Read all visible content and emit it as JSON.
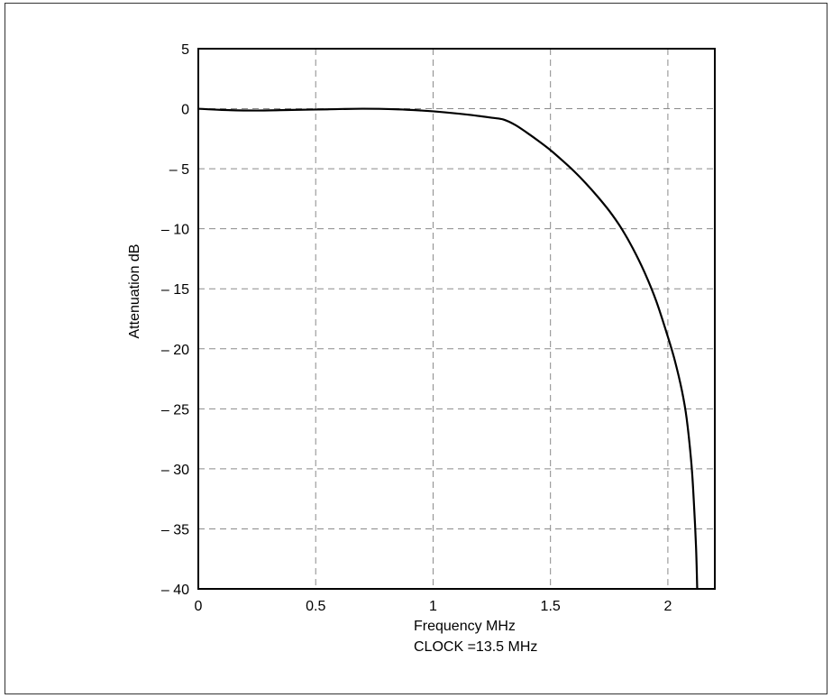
{
  "chart_data": {
    "type": "line",
    "title": "",
    "xlabel": "Frequency MHz",
    "xlabel_note": "CLOCK =13.5 MHz",
    "ylabel": "Attenuation dB",
    "xlim": [
      0,
      2.2
    ],
    "ylim": [
      -40,
      5
    ],
    "grid": true,
    "x_ticks": [
      {
        "value": 0,
        "label": "0"
      },
      {
        "value": 0.5,
        "label": "0.5"
      },
      {
        "value": 1,
        "label": "1"
      },
      {
        "value": 1.5,
        "label": "1.5"
      },
      {
        "value": 2,
        "label": "2"
      }
    ],
    "y_ticks": [
      {
        "value": 5,
        "label": "5"
      },
      {
        "value": 0,
        "label": "0"
      },
      {
        "value": -5,
        "label": "– 5"
      },
      {
        "value": -10,
        "label": "– 10"
      },
      {
        "value": -15,
        "label": "– 15"
      },
      {
        "value": -20,
        "label": "– 20"
      },
      {
        "value": -25,
        "label": "– 25"
      },
      {
        "value": -30,
        "label": "– 30"
      },
      {
        "value": -35,
        "label": "– 35"
      },
      {
        "value": -40,
        "label": "– 40"
      }
    ],
    "series": [
      {
        "color": "#000000",
        "x": [
          0,
          0.1,
          0.25,
          0.4,
          0.55,
          0.7,
          0.85,
          0.95,
          1.05,
          1.15,
          1.25,
          1.3,
          1.35,
          1.4,
          1.45,
          1.5,
          1.55,
          1.6,
          1.65,
          1.7,
          1.75,
          1.8,
          1.85,
          1.9,
          1.95,
          2.0,
          2.03,
          2.06,
          2.08,
          2.1,
          2.11,
          2.12,
          2.125
        ],
        "y": [
          0.0,
          -0.1,
          -0.15,
          -0.1,
          -0.05,
          0.0,
          -0.05,
          -0.15,
          -0.3,
          -0.5,
          -0.75,
          -0.9,
          -1.35,
          -2.0,
          -2.7,
          -3.45,
          -4.3,
          -5.2,
          -6.2,
          -7.3,
          -8.5,
          -9.9,
          -11.6,
          -13.6,
          -16.0,
          -19.0,
          -21.0,
          -23.5,
          -25.8,
          -29.5,
          -32.5,
          -36.5,
          -40.0
        ]
      }
    ]
  }
}
